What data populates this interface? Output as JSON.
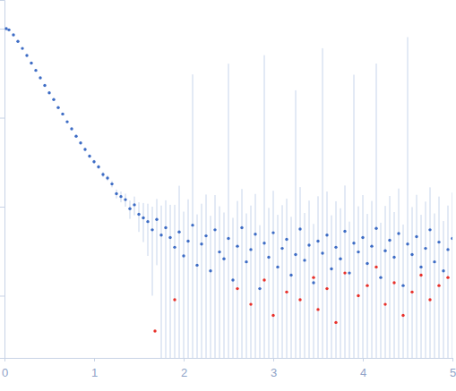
{
  "chart_data": {
    "type": "scatter",
    "log": "y",
    "tick_labels": "x",
    "xlim": [
      0,
      5
    ],
    "xticks": [
      0,
      1,
      2,
      3,
      4,
      5
    ],
    "ylim": [
      0.0002,
      2.1
    ],
    "yticks": [
      0.001,
      0.01,
      0.1,
      1
    ],
    "series": [
      {
        "color": "#3d6cc5",
        "marker": "circle",
        "x": [
          0.02,
          0.05,
          0.1,
          0.15,
          0.2,
          0.25,
          0.3,
          0.35,
          0.4,
          0.45,
          0.5,
          0.55,
          0.6,
          0.65,
          0.7,
          0.75,
          0.8,
          0.85,
          0.9,
          0.95,
          1.0,
          1.05,
          1.1,
          1.15,
          1.2,
          1.25,
          1.3,
          1.35,
          1.4,
          1.45,
          1.5,
          1.55,
          1.6,
          1.65,
          1.7,
          1.75,
          1.8,
          1.85,
          1.9,
          1.95,
          2.0,
          2.05,
          2.1,
          2.15,
          2.2,
          2.25,
          2.3,
          2.35,
          2.4,
          2.45,
          2.5,
          2.55,
          2.6,
          2.65,
          2.7,
          2.75,
          2.8,
          2.85,
          2.9,
          2.95,
          3.0,
          3.05,
          3.1,
          3.15,
          3.2,
          3.25,
          3.3,
          3.35,
          3.4,
          3.45,
          3.5,
          3.55,
          3.6,
          3.65,
          3.7,
          3.75,
          3.8,
          3.85,
          3.9,
          3.95,
          4.0,
          4.05,
          4.1,
          4.15,
          4.2,
          4.25,
          4.3,
          4.35,
          4.4,
          4.45,
          4.5,
          4.55,
          4.6,
          4.65,
          4.7,
          4.75,
          4.8,
          4.85,
          4.9,
          4.95,
          5.0
        ],
        "values": [
          1.0,
          0.97,
          0.85,
          0.72,
          0.6,
          0.5,
          0.41,
          0.34,
          0.28,
          0.23,
          0.19,
          0.16,
          0.13,
          0.11,
          0.09,
          0.075,
          0.062,
          0.052,
          0.044,
          0.037,
          0.032,
          0.028,
          0.023,
          0.021,
          0.018,
          0.014,
          0.013,
          0.012,
          0.0095,
          0.0105,
          0.0082,
          0.0075,
          0.0068,
          0.0055,
          0.0072,
          0.0048,
          0.0058,
          0.0045,
          0.0035,
          0.0052,
          0.0028,
          0.0041,
          0.0062,
          0.0022,
          0.0038,
          0.0047,
          0.0019,
          0.0055,
          0.0031,
          0.0026,
          0.0044,
          0.0015,
          0.0036,
          0.0058,
          0.0024,
          0.0033,
          0.0049,
          0.0012,
          0.0039,
          0.0027,
          0.0051,
          0.0021,
          0.0034,
          0.0043,
          0.0017,
          0.0029,
          0.0056,
          0.0025,
          0.0037,
          0.0014,
          0.0041,
          0.003,
          0.0048,
          0.002,
          0.0035,
          0.0026,
          0.0053,
          0.0018,
          0.0039,
          0.0031,
          0.0045,
          0.0023,
          0.0036,
          0.0057,
          0.0016,
          0.0032,
          0.0042,
          0.0027,
          0.005,
          0.0013,
          0.0038,
          0.0029,
          0.0046,
          0.0021,
          0.0034,
          0.0055,
          0.0024,
          0.004,
          0.0019,
          0.0033,
          0.0044
        ],
        "error": [
          0.02,
          0.015,
          0.012,
          0.01,
          0.008,
          0.007,
          0.006,
          0.005,
          0.0045,
          0.004,
          0.0035,
          0.003,
          0.0028,
          0.0026,
          0.0024,
          0.0022,
          0.002,
          0.0019,
          0.0018,
          0.0017,
          0.0016,
          0.0016,
          0.0015,
          0.0015,
          0.0015,
          0.0016,
          0.0018,
          0.002,
          0.0022,
          0.0025,
          0.003,
          0.0035,
          0.004,
          0.0045,
          0.005,
          0.0055,
          0.006,
          0.006,
          0.007,
          0.012,
          0.006,
          0.008,
          0.3,
          0.006,
          0.007,
          0.009,
          0.006,
          0.008,
          0.007,
          0.006,
          0.4,
          0.006,
          0.008,
          0.01,
          0.006,
          0.007,
          0.009,
          0.005,
          0.5,
          0.007,
          0.01,
          0.006,
          0.007,
          0.008,
          0.006,
          0.2,
          0.011,
          0.006,
          0.008,
          0.005,
          0.009,
          0.6,
          0.01,
          0.006,
          0.008,
          0.007,
          0.012,
          0.005,
          0.3,
          0.007,
          0.009,
          0.006,
          0.008,
          0.4,
          0.005,
          0.007,
          0.009,
          0.006,
          0.011,
          0.005,
          0.8,
          0.007,
          0.009,
          0.006,
          0.008,
          0.011,
          0.006,
          0.009,
          0.005,
          0.007,
          0.01
        ]
      },
      {
        "color": "#e8302a",
        "marker": "circle",
        "x": [
          1.68,
          1.9,
          2.6,
          2.75,
          2.9,
          3.0,
          3.15,
          3.3,
          3.45,
          3.5,
          3.6,
          3.7,
          3.8,
          3.95,
          4.05,
          4.15,
          4.25,
          4.35,
          4.45,
          4.55,
          4.65,
          4.75,
          4.85,
          4.95
        ],
        "values": [
          0.0004,
          0.0009,
          0.0012,
          0.0008,
          0.0015,
          0.0006,
          0.0011,
          0.0009,
          0.0016,
          0.0007,
          0.0012,
          0.0005,
          0.0018,
          0.001,
          0.0013,
          0.0021,
          0.0008,
          0.0014,
          0.0006,
          0.0011,
          0.0017,
          0.0009,
          0.0013,
          0.0016
        ]
      }
    ]
  }
}
